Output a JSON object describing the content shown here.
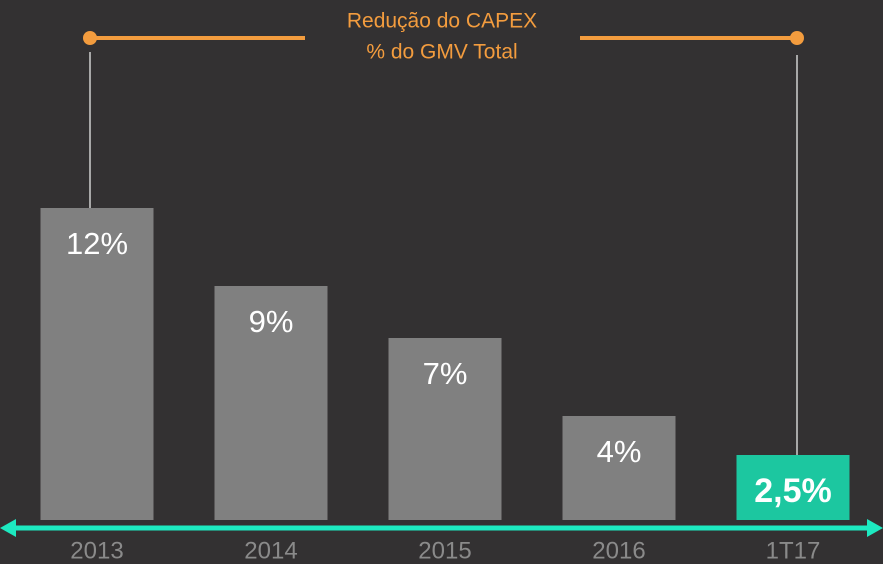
{
  "chart_data": {
    "type": "bar",
    "title": "Redução do CAPEX",
    "subtitle": "% do GMV Total",
    "categories": [
      "2013",
      "2014",
      "2015",
      "2016",
      "1T17"
    ],
    "values": [
      12,
      9,
      7,
      4,
      2.5
    ],
    "value_labels": [
      "12%",
      "9%",
      "7%",
      "4%",
      "2,5%"
    ],
    "colors": [
      "#808080",
      "#808080",
      "#808080",
      "#808080",
      "#1cc7a0"
    ]
  }
}
